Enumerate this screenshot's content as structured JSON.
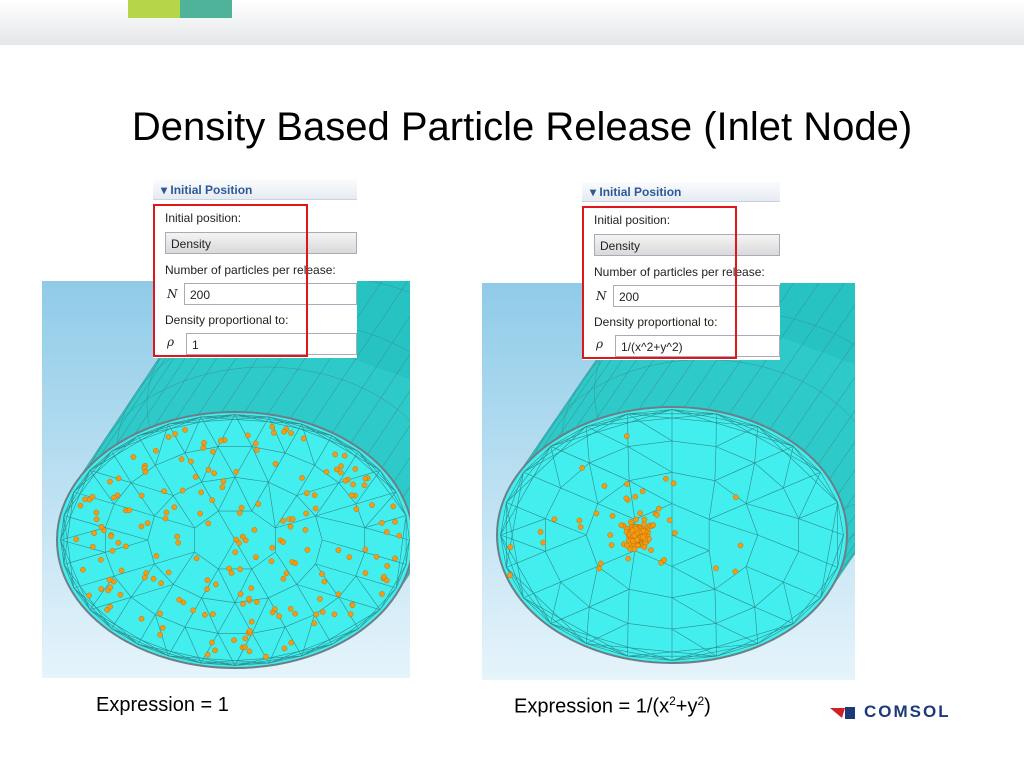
{
  "header": {
    "title": "Density Based Particle Release (Inlet Node)"
  },
  "panels": [
    {
      "section": "Initial Position",
      "position_label": "Initial position:",
      "position_value": "Density",
      "count_label": "Number of particles per release:",
      "count_symbol": "N",
      "count_value": 200,
      "density_label": "Density proportional to:",
      "density_symbol": "ρ",
      "density_value": "1",
      "caption": [
        "Expression = 1"
      ]
    },
    {
      "section": "Initial Position",
      "position_label": "Initial position:",
      "position_value": "Density",
      "count_label": "Number of particles per release:",
      "count_symbol": "N",
      "count_value": 200,
      "density_label": "Density proportional to:",
      "density_symbol": "ρ",
      "density_value": "1/(x^2+y^2)",
      "caption": [
        "Expression = 1/(x",
        "2",
        "+y",
        "2",
        ")"
      ]
    }
  ],
  "logo": "COMSOL"
}
